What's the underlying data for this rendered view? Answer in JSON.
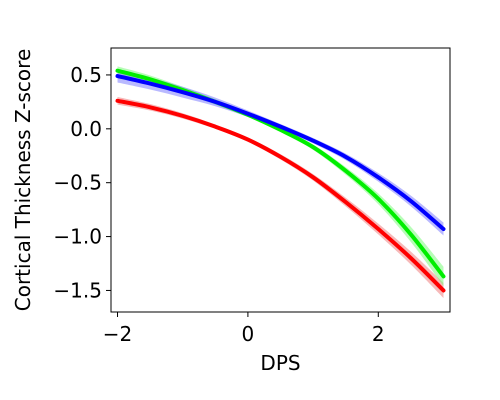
{
  "chart_data": {
    "type": "line",
    "title": "",
    "xlabel": "DPS",
    "ylabel": "Cortical Thickness Z-score",
    "xlim": [
      -2.1,
      3.1
    ],
    "ylim": [
      -1.7,
      0.75
    ],
    "xticks": [
      -2,
      0,
      2
    ],
    "yticks": [
      0.5,
      0.0,
      -0.5,
      -1.0,
      -1.5
    ],
    "xtick_labels": [
      "−2",
      "0",
      "2"
    ],
    "ytick_labels": [
      "0.5",
      "0.0",
      "−0.5",
      "−1.0",
      "−1.5"
    ],
    "grid": false,
    "legend": "none",
    "series": [
      {
        "color": "#ff0000",
        "band_color": "#f08080",
        "x": [
          -2.0,
          -1.5,
          -1.0,
          -0.5,
          0.0,
          0.5,
          1.0,
          1.5,
          2.0,
          2.5,
          3.0
        ],
        "y": [
          0.26,
          0.2,
          0.12,
          0.02,
          -0.1,
          -0.26,
          -0.45,
          -0.68,
          -0.93,
          -1.2,
          -1.5
        ],
        "ci_half_width": [
          0.035,
          0.03,
          0.025,
          0.02,
          0.02,
          0.025,
          0.03,
          0.04,
          0.05,
          0.06,
          0.07
        ]
      },
      {
        "color": "#00ee00",
        "band_color": "#7cfc7c",
        "x": [
          -2.0,
          -1.5,
          -1.0,
          -0.5,
          0.0,
          0.5,
          1.0,
          1.5,
          2.0,
          2.5,
          3.0
        ],
        "y": [
          0.54,
          0.46,
          0.36,
          0.25,
          0.13,
          -0.01,
          -0.17,
          -0.39,
          -0.65,
          -0.98,
          -1.37
        ],
        "ci_half_width": [
          0.04,
          0.035,
          0.03,
          0.025,
          0.02,
          0.02,
          0.025,
          0.035,
          0.05,
          0.07,
          0.09
        ]
      },
      {
        "color": "#0000ff",
        "band_color": "#8080ff",
        "x": [
          -2.0,
          -1.5,
          -1.0,
          -0.5,
          0.0,
          0.5,
          1.0,
          1.5,
          2.0,
          2.5,
          3.0
        ],
        "y": [
          0.49,
          0.42,
          0.34,
          0.25,
          0.14,
          0.02,
          -0.11,
          -0.26,
          -0.45,
          -0.67,
          -0.93
        ],
        "ci_half_width": [
          0.06,
          0.055,
          0.05,
          0.04,
          0.03,
          0.025,
          0.025,
          0.03,
          0.04,
          0.05,
          0.06
        ]
      }
    ]
  }
}
